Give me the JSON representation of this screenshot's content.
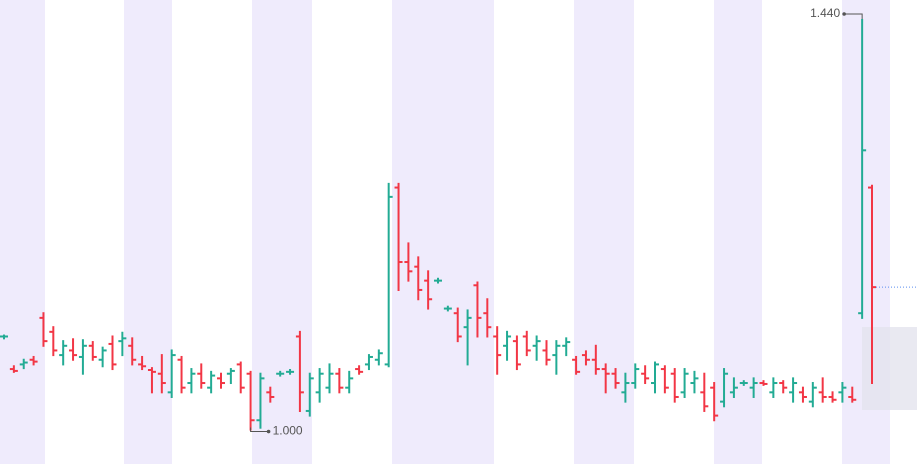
{
  "chart_data": {
    "type": "ohlc",
    "up_color": "#22ab94",
    "down_color": "#f23645",
    "ylim": [
      0.963,
      1.4615
    ],
    "high_label": "1.440",
    "low_label": "1.000",
    "open": [
      1.1,
      1.065,
      1.07,
      1.075,
      1.12,
      1.105,
      1.08,
      1.085,
      1.078,
      1.09,
      1.075,
      1.092,
      1.095,
      1.09,
      1.07,
      1.064,
      1.06,
      1.04,
      1.075,
      1.05,
      1.06,
      1.045,
      1.055,
      1.06,
      1.07,
      1.06,
      1.01,
      1.04,
      1.06,
      1.062,
      1.1,
      1.02,
      1.04,
      1.045,
      1.06,
      1.045,
      1.065,
      1.07,
      1.075,
      1.07,
      1.26,
      1.18,
      1.175,
      1.16,
      1.16,
      1.13,
      1.125,
      1.11,
      1.155,
      1.125,
      1.1,
      1.09,
      1.095,
      1.1,
      1.09,
      1.085,
      1.08,
      1.09,
      1.075,
      1.08,
      1.075,
      1.065,
      1.06,
      1.04,
      1.05,
      1.06,
      1.05,
      1.065,
      1.06,
      1.04,
      1.05,
      1.04,
      1.045,
      1.03,
      1.04,
      1.05,
      1.045,
      1.05,
      1.04,
      1.05,
      1.04,
      1.04,
      1.03,
      1.04,
      1.035,
      1.04,
      1.035,
      1.125,
      1.26
    ],
    "high": [
      1.101,
      1.068,
      1.075,
      1.078,
      1.125,
      1.11,
      1.095,
      1.097,
      1.096,
      1.094,
      1.088,
      1.1,
      1.104,
      1.098,
      1.078,
      1.066,
      1.08,
      1.085,
      1.078,
      1.065,
      1.07,
      1.062,
      1.06,
      1.065,
      1.072,
      1.062,
      1.06,
      1.045,
      1.062,
      1.064,
      1.105,
      1.06,
      1.065,
      1.07,
      1.065,
      1.062,
      1.068,
      1.08,
      1.085,
      1.264,
      1.264,
      1.2,
      1.185,
      1.17,
      1.162,
      1.132,
      1.13,
      1.128,
      1.158,
      1.14,
      1.11,
      1.105,
      1.1,
      1.105,
      1.1,
      1.095,
      1.095,
      1.098,
      1.078,
      1.084,
      1.09,
      1.07,
      1.065,
      1.06,
      1.07,
      1.068,
      1.072,
      1.068,
      1.065,
      1.065,
      1.062,
      1.06,
      1.05,
      1.065,
      1.055,
      1.052,
      1.055,
      1.052,
      1.055,
      1.052,
      1.055,
      1.045,
      1.05,
      1.055,
      1.04,
      1.05,
      1.045,
      1.44,
      1.262
    ],
    "low": [
      1.098,
      1.062,
      1.066,
      1.07,
      1.09,
      1.08,
      1.07,
      1.075,
      1.06,
      1.075,
      1.068,
      1.065,
      1.08,
      1.07,
      1.065,
      1.04,
      1.04,
      1.035,
      1.04,
      1.04,
      1.045,
      1.04,
      1.045,
      1.05,
      1.04,
      1.0,
      1.002,
      1.03,
      1.058,
      1.06,
      1.02,
      1.015,
      1.03,
      1.04,
      1.04,
      1.04,
      1.06,
      1.065,
      1.07,
      1.068,
      1.15,
      1.16,
      1.14,
      1.13,
      1.158,
      1.128,
      1.095,
      1.07,
      1.1,
      1.1,
      1.06,
      1.075,
      1.065,
      1.08,
      1.075,
      1.07,
      1.06,
      1.08,
      1.06,
      1.07,
      1.06,
      1.04,
      1.045,
      1.03,
      1.045,
      1.05,
      1.04,
      1.04,
      1.03,
      1.035,
      1.04,
      1.02,
      1.01,
      1.025,
      1.035,
      1.048,
      1.035,
      1.048,
      1.035,
      1.04,
      1.03,
      1.03,
      1.025,
      1.03,
      1.03,
      1.03,
      1.03,
      1.12,
      1.05
    ],
    "close": [
      1.1,
      1.063,
      1.072,
      1.073,
      1.095,
      1.085,
      1.09,
      1.08,
      1.09,
      1.078,
      1.085,
      1.07,
      1.098,
      1.075,
      1.068,
      1.062,
      1.05,
      1.08,
      1.045,
      1.06,
      1.05,
      1.058,
      1.05,
      1.063,
      1.045,
      1.01,
      1.055,
      1.035,
      1.06,
      1.062,
      1.04,
      1.055,
      1.06,
      1.06,
      1.045,
      1.055,
      1.062,
      1.078,
      1.082,
      1.25,
      1.18,
      1.17,
      1.15,
      1.14,
      1.16,
      1.13,
      1.1,
      1.12,
      1.12,
      1.11,
      1.08,
      1.1,
      1.07,
      1.085,
      1.095,
      1.075,
      1.09,
      1.094,
      1.062,
      1.075,
      1.065,
      1.06,
      1.05,
      1.05,
      1.065,
      1.055,
      1.07,
      1.045,
      1.035,
      1.06,
      1.055,
      1.025,
      1.015,
      1.06,
      1.045,
      1.05,
      1.05,
      1.049,
      1.05,
      1.045,
      1.05,
      1.035,
      1.045,
      1.035,
      1.032,
      1.045,
      1.032,
      1.3,
      1.153
    ]
  }
}
